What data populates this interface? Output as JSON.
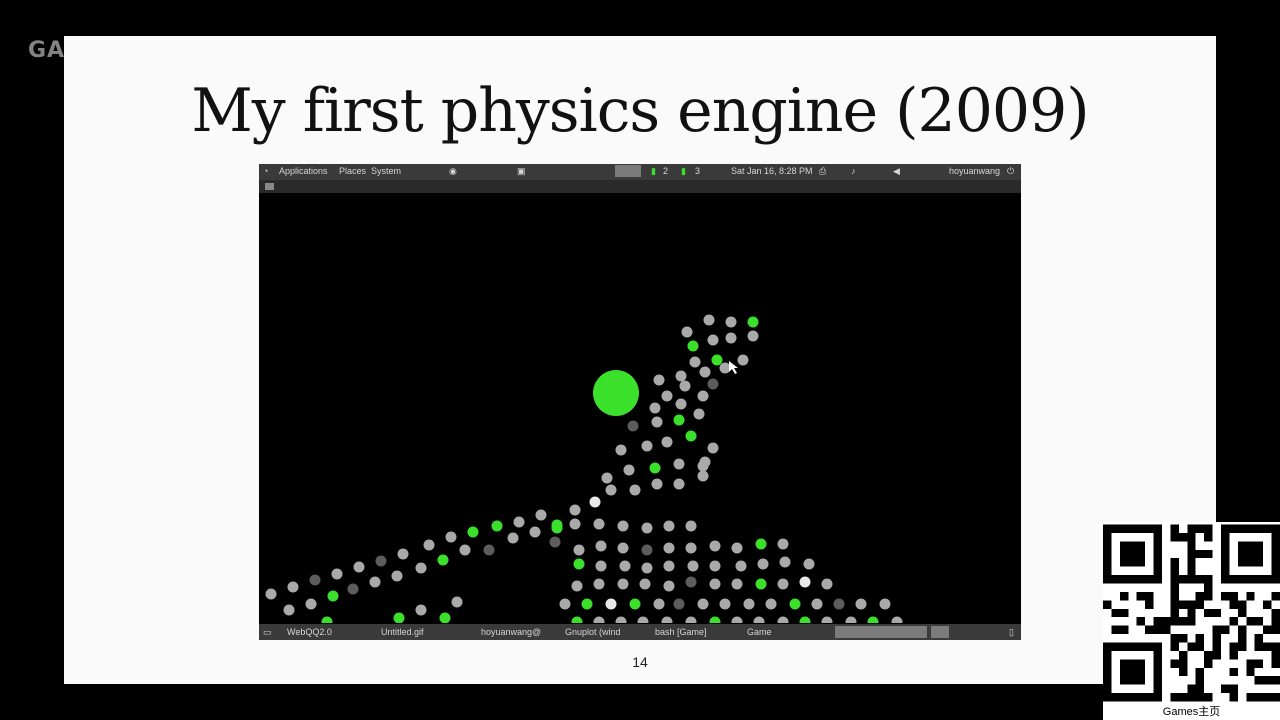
{
  "watermark": "GAMES",
  "slide": {
    "title": "My first physics engine (2009)",
    "page_number": "14"
  },
  "screenshot": {
    "top_menu": [
      "Applications",
      "Places",
      "System"
    ],
    "workspaces": [
      "2",
      "3"
    ],
    "clock": "Sat Jan 16, 8:28 PM",
    "user": "hoyuanwang",
    "taskbar": [
      "WebQQ2.0",
      "Untitled.gif",
      "hoyuanwang@",
      "Gnuplot (wind",
      "bash [Game]",
      "Game"
    ]
  },
  "qr_caption": "Games主页",
  "colors": {
    "green": "#3be02b",
    "gray": "#a9a9a9",
    "white": "#e8e8e8",
    "dark": "#5c5c5c"
  }
}
